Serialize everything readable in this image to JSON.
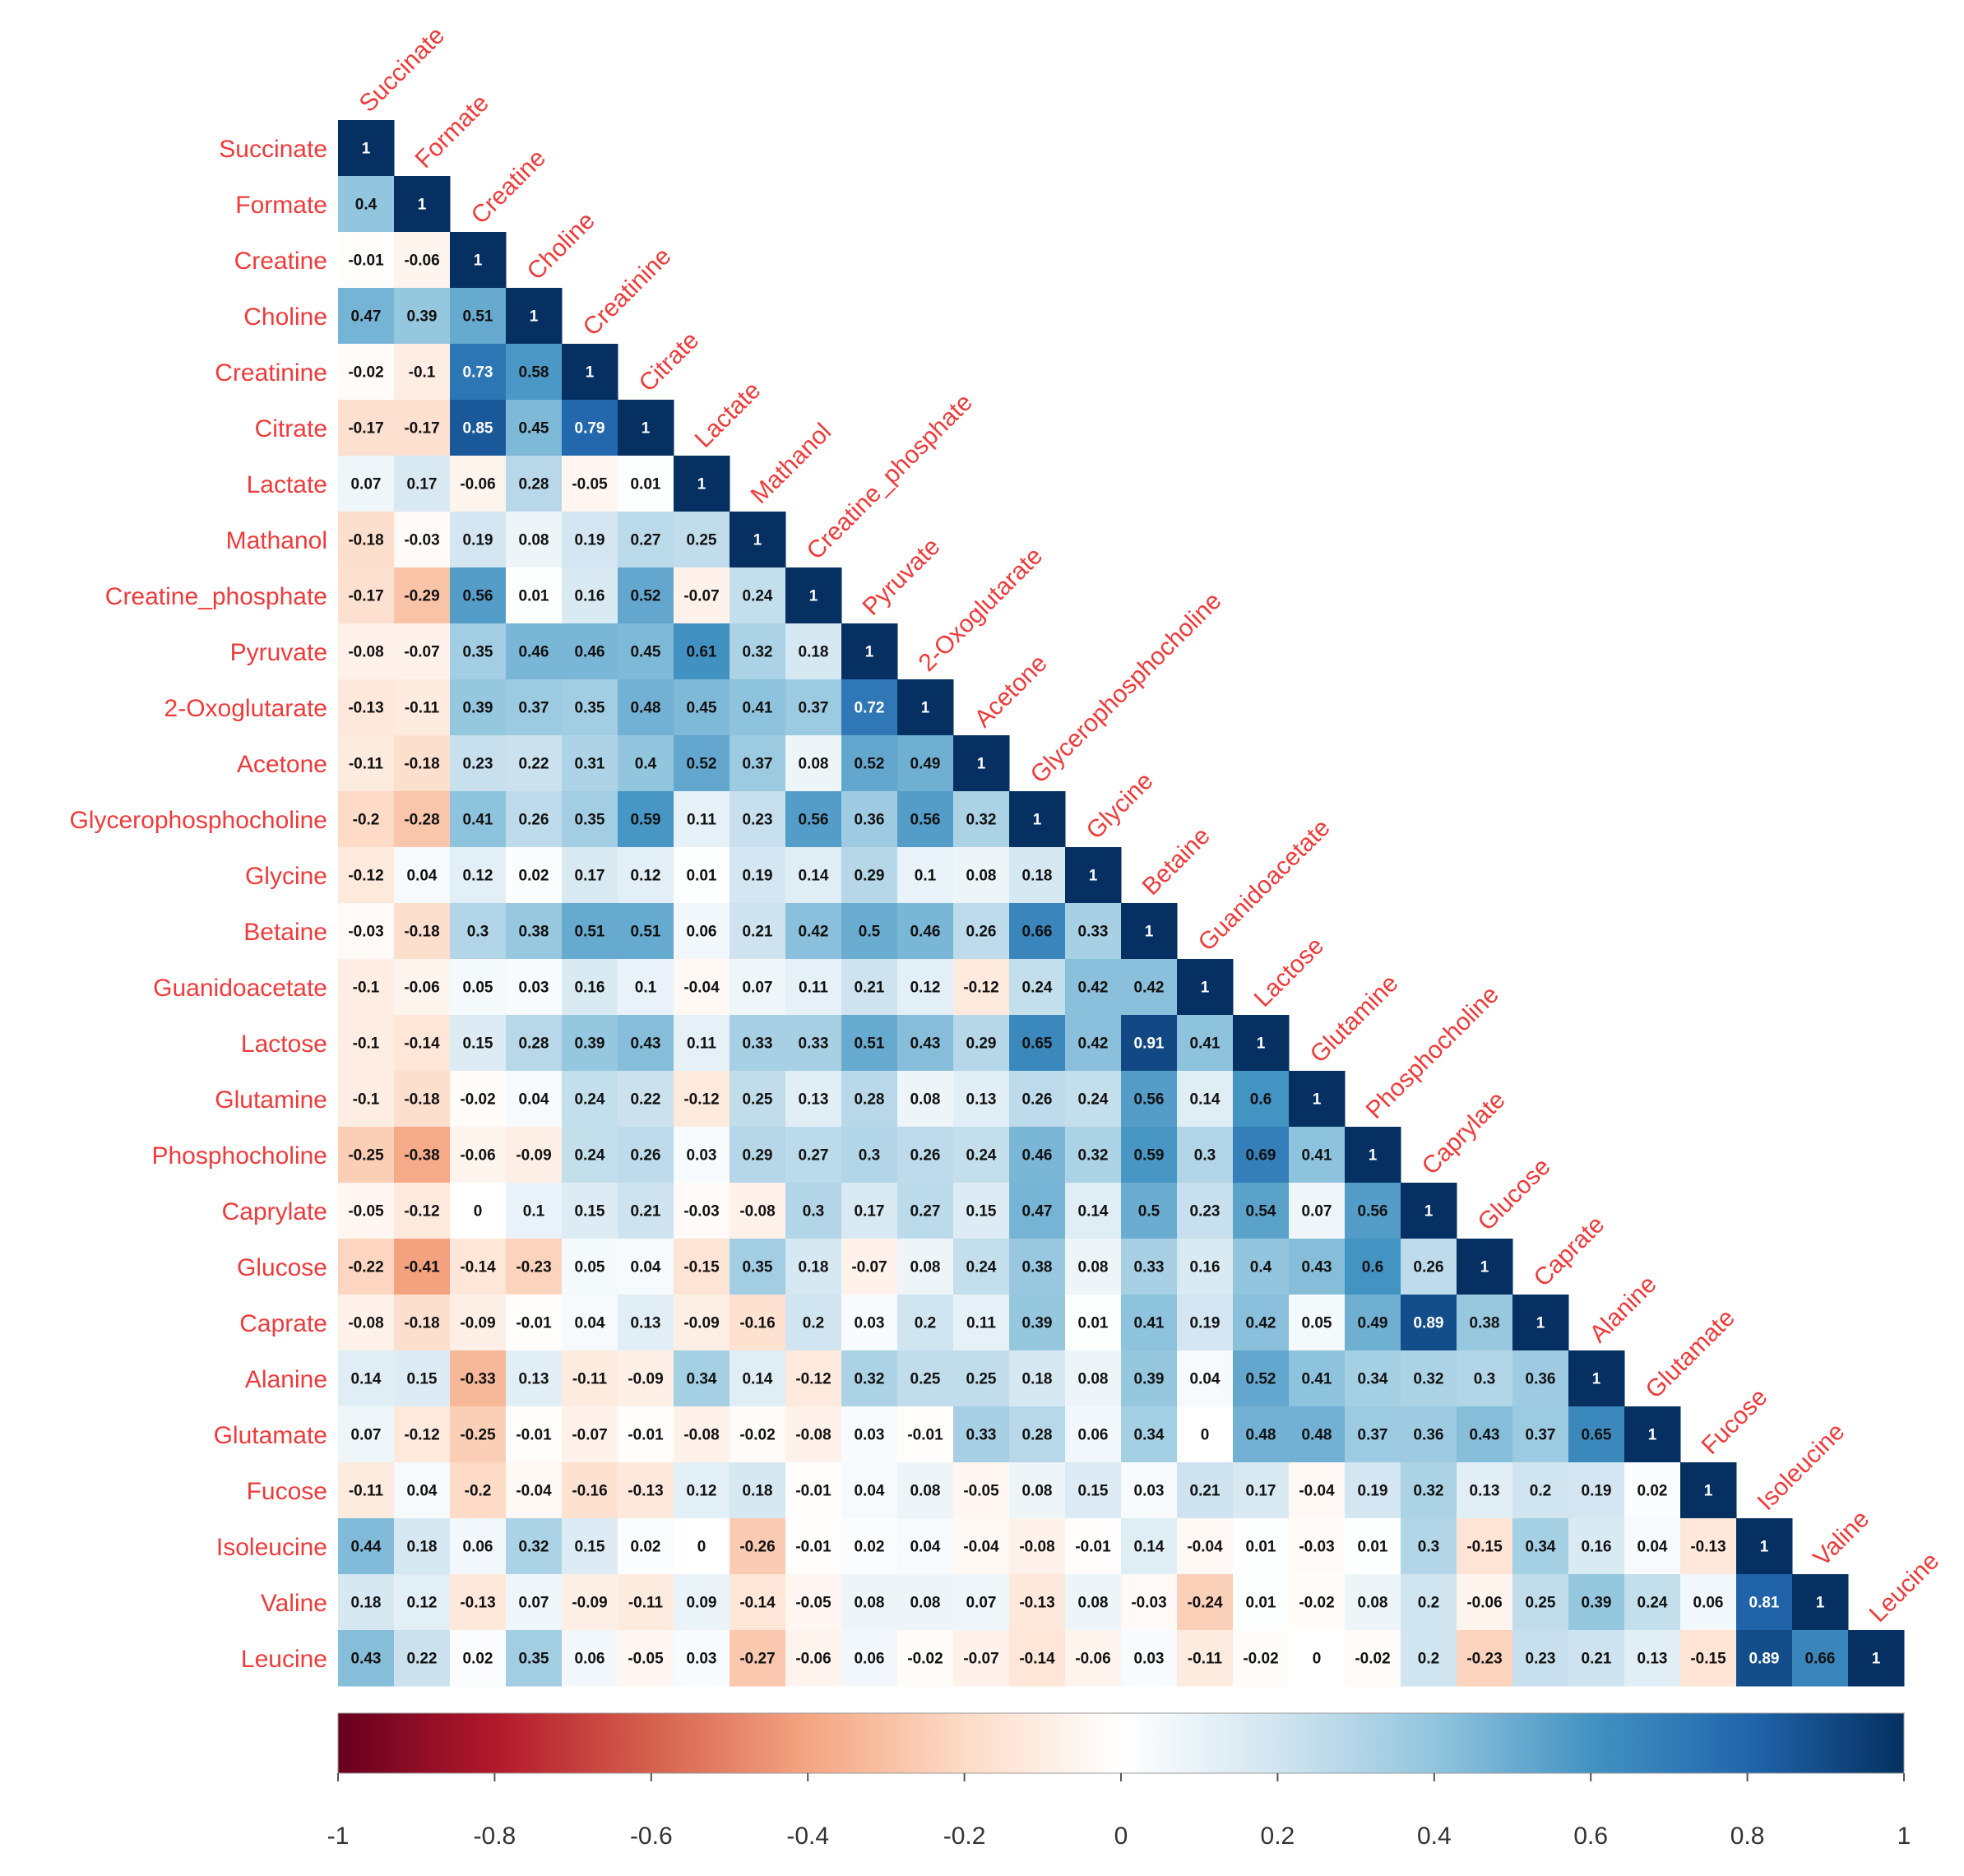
{
  "chart_data": {
    "type": "heatmap",
    "subtype": "lower-triangular correlation matrix",
    "variables": [
      "Succinate",
      "Formate",
      "Creatine",
      "Choline",
      "Creatinine",
      "Citrate",
      "Lactate",
      "Mathanol",
      "Creatine_phosphate",
      "Pyruvate",
      "2-Oxoglutarate",
      "Acetone",
      "Glycerophosphocholine",
      "Glycine",
      "Betaine",
      "Guanidoacetate",
      "Lactose",
      "Glutamine",
      "Phosphocholine",
      "Caprylate",
      "Glucose",
      "Caprate",
      "Alanine",
      "Glutamate",
      "Fucose",
      "Isoleucine",
      "Valine",
      "Leucine"
    ],
    "matrix": [
      [
        1
      ],
      [
        0.4,
        1
      ],
      [
        -0.01,
        -0.06,
        1
      ],
      [
        0.47,
        0.39,
        0.51,
        1
      ],
      [
        -0.02,
        -0.1,
        0.73,
        0.58,
        1
      ],
      [
        -0.17,
        -0.17,
        0.85,
        0.45,
        0.79,
        1
      ],
      [
        0.07,
        0.17,
        -0.06,
        0.28,
        -0.05,
        0.01,
        1
      ],
      [
        -0.18,
        -0.03,
        0.19,
        0.08,
        0.19,
        0.27,
        0.25,
        1
      ],
      [
        -0.17,
        -0.29,
        0.56,
        0.01,
        0.16,
        0.52,
        -0.07,
        0.24,
        1
      ],
      [
        -0.08,
        -0.07,
        0.35,
        0.46,
        0.46,
        0.45,
        0.61,
        0.32,
        0.18,
        1
      ],
      [
        -0.13,
        -0.11,
        0.39,
        0.37,
        0.35,
        0.48,
        0.45,
        0.41,
        0.37,
        0.72,
        1
      ],
      [
        -0.11,
        -0.18,
        0.23,
        0.22,
        0.31,
        0.4,
        0.52,
        0.37,
        0.08,
        0.52,
        0.49,
        1
      ],
      [
        -0.2,
        -0.28,
        0.41,
        0.26,
        0.35,
        0.59,
        0.11,
        0.23,
        0.56,
        0.36,
        0.56,
        0.32,
        1
      ],
      [
        -0.12,
        0.04,
        0.12,
        0.02,
        0.17,
        0.12,
        0.01,
        0.19,
        0.14,
        0.29,
        0.1,
        0.08,
        0.18,
        1
      ],
      [
        -0.03,
        -0.18,
        0.3,
        0.38,
        0.51,
        0.51,
        0.06,
        0.21,
        0.42,
        0.5,
        0.46,
        0.26,
        0.66,
        0.33,
        1
      ],
      [
        -0.1,
        -0.06,
        0.05,
        0.03,
        0.16,
        0.1,
        -0.04,
        0.07,
        0.11,
        0.21,
        0.12,
        -0.12,
        0.24,
        0.42,
        0.42,
        1
      ],
      [
        -0.1,
        -0.14,
        0.15,
        0.28,
        0.39,
        0.43,
        0.11,
        0.33,
        0.33,
        0.51,
        0.43,
        0.29,
        0.65,
        0.42,
        0.91,
        0.41,
        1
      ],
      [
        -0.1,
        -0.18,
        -0.02,
        0.04,
        0.24,
        0.22,
        -0.12,
        0.25,
        0.13,
        0.28,
        0.08,
        0.13,
        0.26,
        0.24,
        0.56,
        0.14,
        0.6,
        1
      ],
      [
        -0.25,
        -0.38,
        -0.06,
        -0.09,
        0.24,
        0.26,
        0.03,
        0.29,
        0.27,
        0.3,
        0.26,
        0.24,
        0.46,
        0.32,
        0.59,
        0.3,
        0.69,
        0.41,
        1
      ],
      [
        -0.05,
        -0.12,
        0,
        0.1,
        0.15,
        0.21,
        -0.03,
        -0.08,
        0.3,
        0.17,
        0.27,
        0.15,
        0.47,
        0.14,
        0.5,
        0.23,
        0.54,
        0.07,
        0.56,
        1
      ],
      [
        -0.22,
        -0.41,
        -0.14,
        -0.23,
        0.05,
        0.04,
        -0.15,
        0.35,
        0.18,
        -0.07,
        0.08,
        0.24,
        0.38,
        0.08,
        0.33,
        0.16,
        0.4,
        0.43,
        0.6,
        0.26,
        1
      ],
      [
        -0.08,
        -0.18,
        -0.09,
        -0.01,
        0.04,
        0.13,
        -0.09,
        -0.16,
        0.2,
        0.03,
        0.2,
        0.11,
        0.39,
        0.01,
        0.41,
        0.19,
        0.42,
        0.05,
        0.49,
        0.89,
        0.38,
        1
      ],
      [
        0.14,
        0.15,
        -0.33,
        0.13,
        -0.11,
        -0.09,
        0.34,
        0.14,
        -0.12,
        0.32,
        0.25,
        0.25,
        0.18,
        0.08,
        0.39,
        0.04,
        0.52,
        0.41,
        0.34,
        0.32,
        0.3,
        0.36,
        1
      ],
      [
        0.07,
        -0.12,
        -0.25,
        -0.01,
        -0.07,
        -0.01,
        -0.08,
        -0.02,
        -0.08,
        0.03,
        -0.01,
        0.33,
        0.28,
        0.06,
        0.34,
        0,
        0.48,
        0.48,
        0.37,
        0.36,
        0.43,
        0.37,
        0.65,
        1
      ],
      [
        -0.11,
        0.04,
        -0.2,
        -0.04,
        -0.16,
        -0.13,
        0.12,
        0.18,
        -0.01,
        0.04,
        0.08,
        -0.05,
        0.08,
        0.15,
        0.03,
        0.21,
        0.17,
        -0.04,
        0.19,
        0.32,
        0.13,
        0.2,
        0.19,
        0.02,
        1
      ],
      [
        0.44,
        0.18,
        0.06,
        0.32,
        0.15,
        0.02,
        0,
        -0.26,
        -0.01,
        0.02,
        0.04,
        -0.04,
        -0.08,
        -0.01,
        0.14,
        -0.04,
        0.01,
        -0.03,
        0.01,
        0.3,
        -0.15,
        0.34,
        0.16,
        0.04,
        -0.13,
        1
      ],
      [
        0.18,
        0.12,
        -0.13,
        0.07,
        -0.09,
        -0.11,
        0.09,
        -0.14,
        -0.05,
        0.08,
        0.08,
        0.07,
        -0.13,
        0.08,
        -0.03,
        -0.24,
        0.01,
        -0.02,
        0.08,
        0.2,
        -0.06,
        0.25,
        0.39,
        0.24,
        0.06,
        0.81,
        1
      ],
      [
        0.43,
        0.22,
        0.02,
        0.35,
        0.06,
        -0.05,
        0.03,
        -0.27,
        -0.06,
        0.06,
        -0.02,
        -0.07,
        -0.14,
        -0.06,
        0.03,
        -0.11,
        -0.02,
        0,
        -0.02,
        0.2,
        -0.23,
        0.23,
        0.21,
        0.13,
        -0.15,
        0.89,
        0.66,
        1
      ]
    ],
    "color_scale": {
      "range": [
        -1,
        1
      ],
      "ticks": [
        -1,
        -0.8,
        -0.6,
        -0.4,
        -0.2,
        0,
        0.2,
        0.4,
        0.6,
        0.8,
        1
      ],
      "tick_labels": [
        "-1",
        "-0.8",
        "-0.6",
        "-0.4",
        "-0.2",
        "0",
        "0.2",
        "0.4",
        "0.6",
        "0.8",
        "1"
      ],
      "colors": [
        "#67001f",
        "#b2182b",
        "#d6604d",
        "#f4a582",
        "#fddbc7",
        "#ffffff",
        "#d1e5f0",
        "#92c5de",
        "#4393c3",
        "#2166ac",
        "#053061"
      ],
      "legend_position": "bottom"
    },
    "label_color": "#ee3b3b"
  }
}
